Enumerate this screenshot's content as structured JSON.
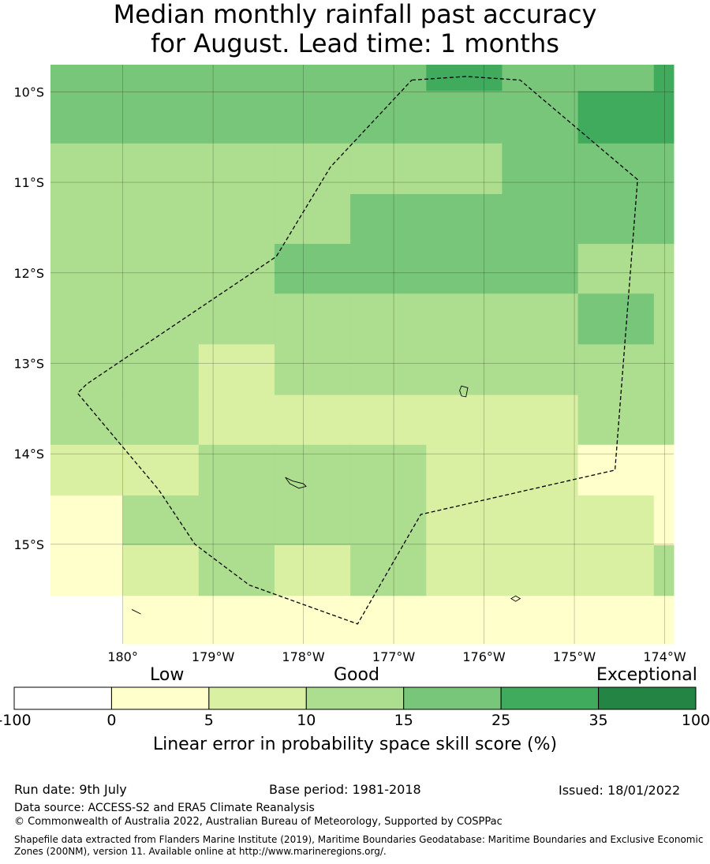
{
  "title": {
    "line1": "Median monthly rainfall past accuracy",
    "line2": "for August. Lead time: 1 months"
  },
  "map": {
    "lon_range": [
      -180.8,
      -173.9
    ],
    "lat_range": [
      -16.1,
      -9.7
    ],
    "lon_ticks": [
      {
        "value": -180,
        "label": "180°"
      },
      {
        "value": -179,
        "label": "179°W"
      },
      {
        "value": -178,
        "label": "178°W"
      },
      {
        "value": -177,
        "label": "177°W"
      },
      {
        "value": -176,
        "label": "176°W"
      },
      {
        "value": -175,
        "label": "175°W"
      },
      {
        "value": -174,
        "label": "174°W"
      }
    ],
    "lat_ticks": [
      {
        "value": -10,
        "label": "10°S"
      },
      {
        "value": -11,
        "label": "11°S"
      },
      {
        "value": -12,
        "label": "12°S"
      },
      {
        "value": -13,
        "label": "13°S"
      },
      {
        "value": -14,
        "label": "14°S"
      },
      {
        "value": -15,
        "label": "15°S"
      }
    ],
    "grid_columns_lon": [
      -180.8,
      -180.0,
      -179.16,
      -178.32,
      -177.48,
      -176.64,
      -175.8,
      -174.96,
      -174.12,
      -173.9
    ],
    "grid_rows_lat": [
      -9.7,
      -9.99,
      -10.57,
      -11.13,
      -11.68,
      -12.23,
      -12.79,
      -13.35,
      -13.9,
      -14.46,
      -15.01,
      -15.57,
      -16.1
    ],
    "grid_class_index": [
      [
        4,
        4,
        4,
        4,
        4,
        5,
        4,
        4,
        5
      ],
      [
        4,
        4,
        4,
        4,
        4,
        4,
        4,
        5,
        5
      ],
      [
        3,
        3,
        3,
        3,
        3,
        3,
        4,
        4,
        4
      ],
      [
        3,
        3,
        3,
        3,
        4,
        4,
        4,
        4,
        4
      ],
      [
        3,
        3,
        3,
        4,
        4,
        4,
        4,
        3,
        3
      ],
      [
        3,
        3,
        3,
        3,
        3,
        3,
        3,
        4,
        3
      ],
      [
        3,
        3,
        2,
        3,
        3,
        3,
        3,
        3,
        3
      ],
      [
        3,
        3,
        2,
        2,
        2,
        2,
        2,
        3,
        3
      ],
      [
        2,
        2,
        3,
        3,
        3,
        2,
        2,
        1,
        1
      ],
      [
        1,
        3,
        3,
        3,
        3,
        2,
        2,
        2,
        1
      ],
      [
        1,
        2,
        3,
        2,
        3,
        2,
        2,
        2,
        3
      ],
      [
        0,
        1,
        1,
        1,
        1,
        1,
        1,
        1,
        1
      ]
    ],
    "boundary_outline": [
      [
        -176.8,
        -9.87
      ],
      [
        -176.2,
        -9.83
      ],
      [
        -175.6,
        -9.87
      ],
      [
        -174.3,
        -10.97
      ],
      [
        -174.55,
        -14.18
      ],
      [
        -176.7,
        -14.67
      ],
      [
        -177.4,
        -15.88
      ],
      [
        -178.6,
        -15.45
      ],
      [
        -179.2,
        -15.0
      ],
      [
        -179.6,
        -14.4
      ],
      [
        -180.5,
        -13.33
      ],
      [
        -180.4,
        -13.23
      ],
      [
        -178.3,
        -11.82
      ],
      [
        -177.7,
        -10.83
      ]
    ],
    "islands": [
      {
        "name": "wallis",
        "points": [
          [
            -176.25,
            -13.25
          ],
          [
            -176.18,
            -13.27
          ],
          [
            -176.2,
            -13.37
          ],
          [
            -176.25,
            -13.36
          ],
          [
            -176.27,
            -13.3
          ]
        ]
      },
      {
        "name": "futuna",
        "points": [
          [
            -178.2,
            -14.26
          ],
          [
            -178.12,
            -14.3
          ],
          [
            -178.0,
            -14.33
          ],
          [
            -177.97,
            -14.36
          ],
          [
            -178.05,
            -14.38
          ],
          [
            -178.15,
            -14.33
          ]
        ]
      },
      {
        "name": "niuafoou",
        "points": [
          [
            -175.65,
            -15.57
          ],
          [
            -175.6,
            -15.6
          ],
          [
            -175.65,
            -15.63
          ],
          [
            -175.7,
            -15.6
          ]
        ]
      },
      {
        "name": "tafahi",
        "points": [
          [
            -179.9,
            -15.72
          ],
          [
            -179.8,
            -15.77
          ],
          [
            -179.88,
            -15.73
          ]
        ]
      }
    ]
  },
  "colorbar": {
    "colors": [
      "#ffffff",
      "#ffffcc",
      "#d9f0a3",
      "#addd8e",
      "#78c679",
      "#41ab5d",
      "#238443"
    ],
    "tick_labels": [
      "-100",
      "0",
      "5",
      "10",
      "15",
      "25",
      "35",
      "100"
    ],
    "category_low": "Low",
    "category_good": "Good",
    "category_exceptional": "Exceptional",
    "label": "Linear error in probability space skill score (%)"
  },
  "footer": {
    "run_date": "Run date: 9th July",
    "base_period": "Base period: 1981-2018",
    "issued": "Issued: 18/01/2022",
    "data_source": "Data source: ACCESS-S2 and ERA5 Climate Reanalysis",
    "copyright": "© Commonwealth of Australia 2022, Australian Bureau of Meteorology, Supported by COSPPac",
    "shapefile": "Shapefile data extracted from Flanders Marine Institute (2019), Maritime Boundaries Geodatabase: Maritime Boundaries and Exclusive Economic Zones (200NM), version 11. Available online at http://www.marineregions.org/."
  }
}
